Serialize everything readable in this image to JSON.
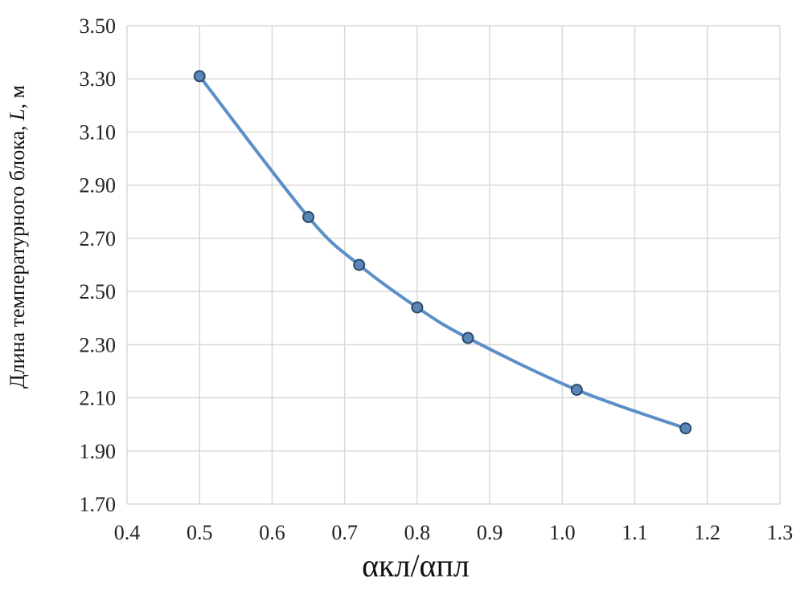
{
  "chart_data": {
    "type": "line",
    "title": "",
    "xlabel": "αкл/αпл",
    "ylabel": "Длина температурного блока, L, м",
    "ylabel_parts": {
      "before": "Длина температурного блока, ",
      "italic": "L",
      "after": ", м"
    },
    "xlim": [
      0.4,
      1.3
    ],
    "ylim": [
      1.7,
      3.5
    ],
    "x_ticks": [
      "0.4",
      "0.5",
      "0.6",
      "0.7",
      "0.8",
      "0.9",
      "1.0",
      "1.1",
      "1.2",
      "1.3"
    ],
    "y_ticks": [
      "1.70",
      "1.90",
      "2.10",
      "2.30",
      "2.50",
      "2.70",
      "2.90",
      "3.10",
      "3.30",
      "3.50"
    ],
    "grid": true,
    "series": [
      {
        "x": [
          0.5,
          0.65,
          0.72,
          0.8,
          0.87,
          1.02,
          1.17
        ],
        "y": [
          3.31,
          2.78,
          2.6,
          2.44,
          2.325,
          2.13,
          1.985
        ],
        "color": "#5b8fc7",
        "marker_fill": "#5a86b8",
        "marker_stroke": "#2d4a6b"
      }
    ]
  }
}
